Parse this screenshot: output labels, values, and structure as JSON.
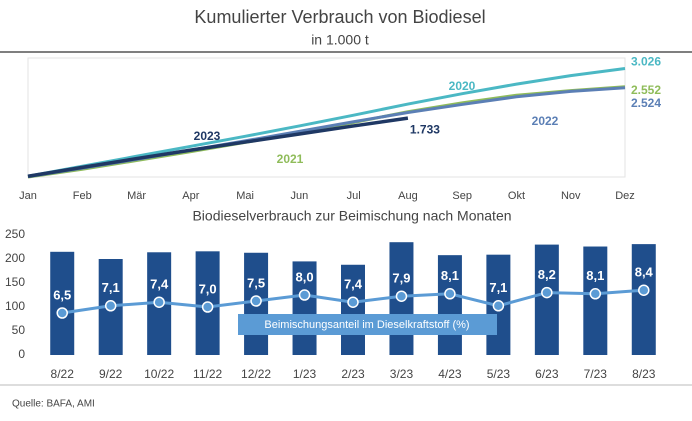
{
  "chart_data": [
    {
      "type": "line",
      "title": "Kumulierter Verbrauch von Biodiesel",
      "subtitle": "in 1.000 t",
      "categories": [
        "Jan",
        "Feb",
        "Mär",
        "Apr",
        "Mai",
        "Jun",
        "Jul",
        "Aug",
        "Sep",
        "Okt",
        "Nov",
        "Dez"
      ],
      "ylim": [
        200,
        3300
      ],
      "series": [
        {
          "name": "2020",
          "color": "#4bb8c4",
          "values": [
            220,
            480,
            740,
            1000,
            1260,
            1530,
            1810,
            2100,
            2370,
            2620,
            2840,
            3026
          ],
          "value_labels": [
            null,
            null,
            null,
            null,
            null,
            null,
            null,
            null,
            null,
            null,
            null,
            "3.026"
          ]
        },
        {
          "name": "2021",
          "color": "#8fbc5a",
          "values": [
            200,
            400,
            630,
            860,
            1100,
            1350,
            1620,
            1900,
            2130,
            2330,
            2450,
            2552
          ],
          "value_labels": [
            null,
            null,
            null,
            null,
            null,
            null,
            null,
            null,
            null,
            null,
            null,
            "2.552"
          ]
        },
        {
          "name": "2022",
          "color": "#5b7fb5",
          "values": [
            210,
            430,
            660,
            900,
            1140,
            1390,
            1640,
            1880,
            2090,
            2290,
            2430,
            2524
          ],
          "value_labels": [
            null,
            null,
            null,
            null,
            null,
            null,
            null,
            null,
            null,
            null,
            null,
            "2.524"
          ]
        },
        {
          "name": "2023",
          "color": "#1f3864",
          "values": [
            220,
            450,
            680,
            900,
            1110,
            1320,
            1530,
            1733,
            null,
            null,
            null,
            null
          ],
          "value_labels": [
            null,
            null,
            null,
            null,
            null,
            null,
            null,
            "1.733",
            null,
            null,
            null,
            null
          ]
        }
      ]
    },
    {
      "type": "bar-line",
      "title": "Biodieselverbrauch zur Beimischung nach Monaten",
      "categories": [
        "8/22",
        "9/22",
        "10/22",
        "11/22",
        "12/22",
        "1/23",
        "2/23",
        "3/23",
        "4/23",
        "5/23",
        "6/23",
        "7/23",
        "8/23"
      ],
      "ylim": [
        0,
        250
      ],
      "yticks": [
        0,
        50,
        100,
        150,
        200,
        250
      ],
      "y2lim": [
        3,
        13
      ],
      "series": [
        {
          "color": "#1f4e8c",
          "values": [
            215,
            200,
            214,
            216,
            213,
            195,
            188,
            235,
            208,
            209,
            230,
            226,
            231
          ]
        },
        {
          "name": "Beimischungsanteil im Dieselkraftstoff (%)",
          "axis": "y2",
          "color": "#5b9bd5",
          "values": [
            6.5,
            7.1,
            7.4,
            7.0,
            7.5,
            8.0,
            7.4,
            7.9,
            8.1,
            7.1,
            8.2,
            8.1,
            8.4
          ],
          "value_labels": [
            "6,5",
            "7,1",
            "7,4",
            "7,0",
            "7,5",
            "8,0",
            "7,4",
            "7,9",
            "8,1",
            "7,1",
            "8,2",
            "8,1",
            "8,4"
          ]
        }
      ]
    }
  ],
  "source": "Quelle: BAFA, AMI"
}
